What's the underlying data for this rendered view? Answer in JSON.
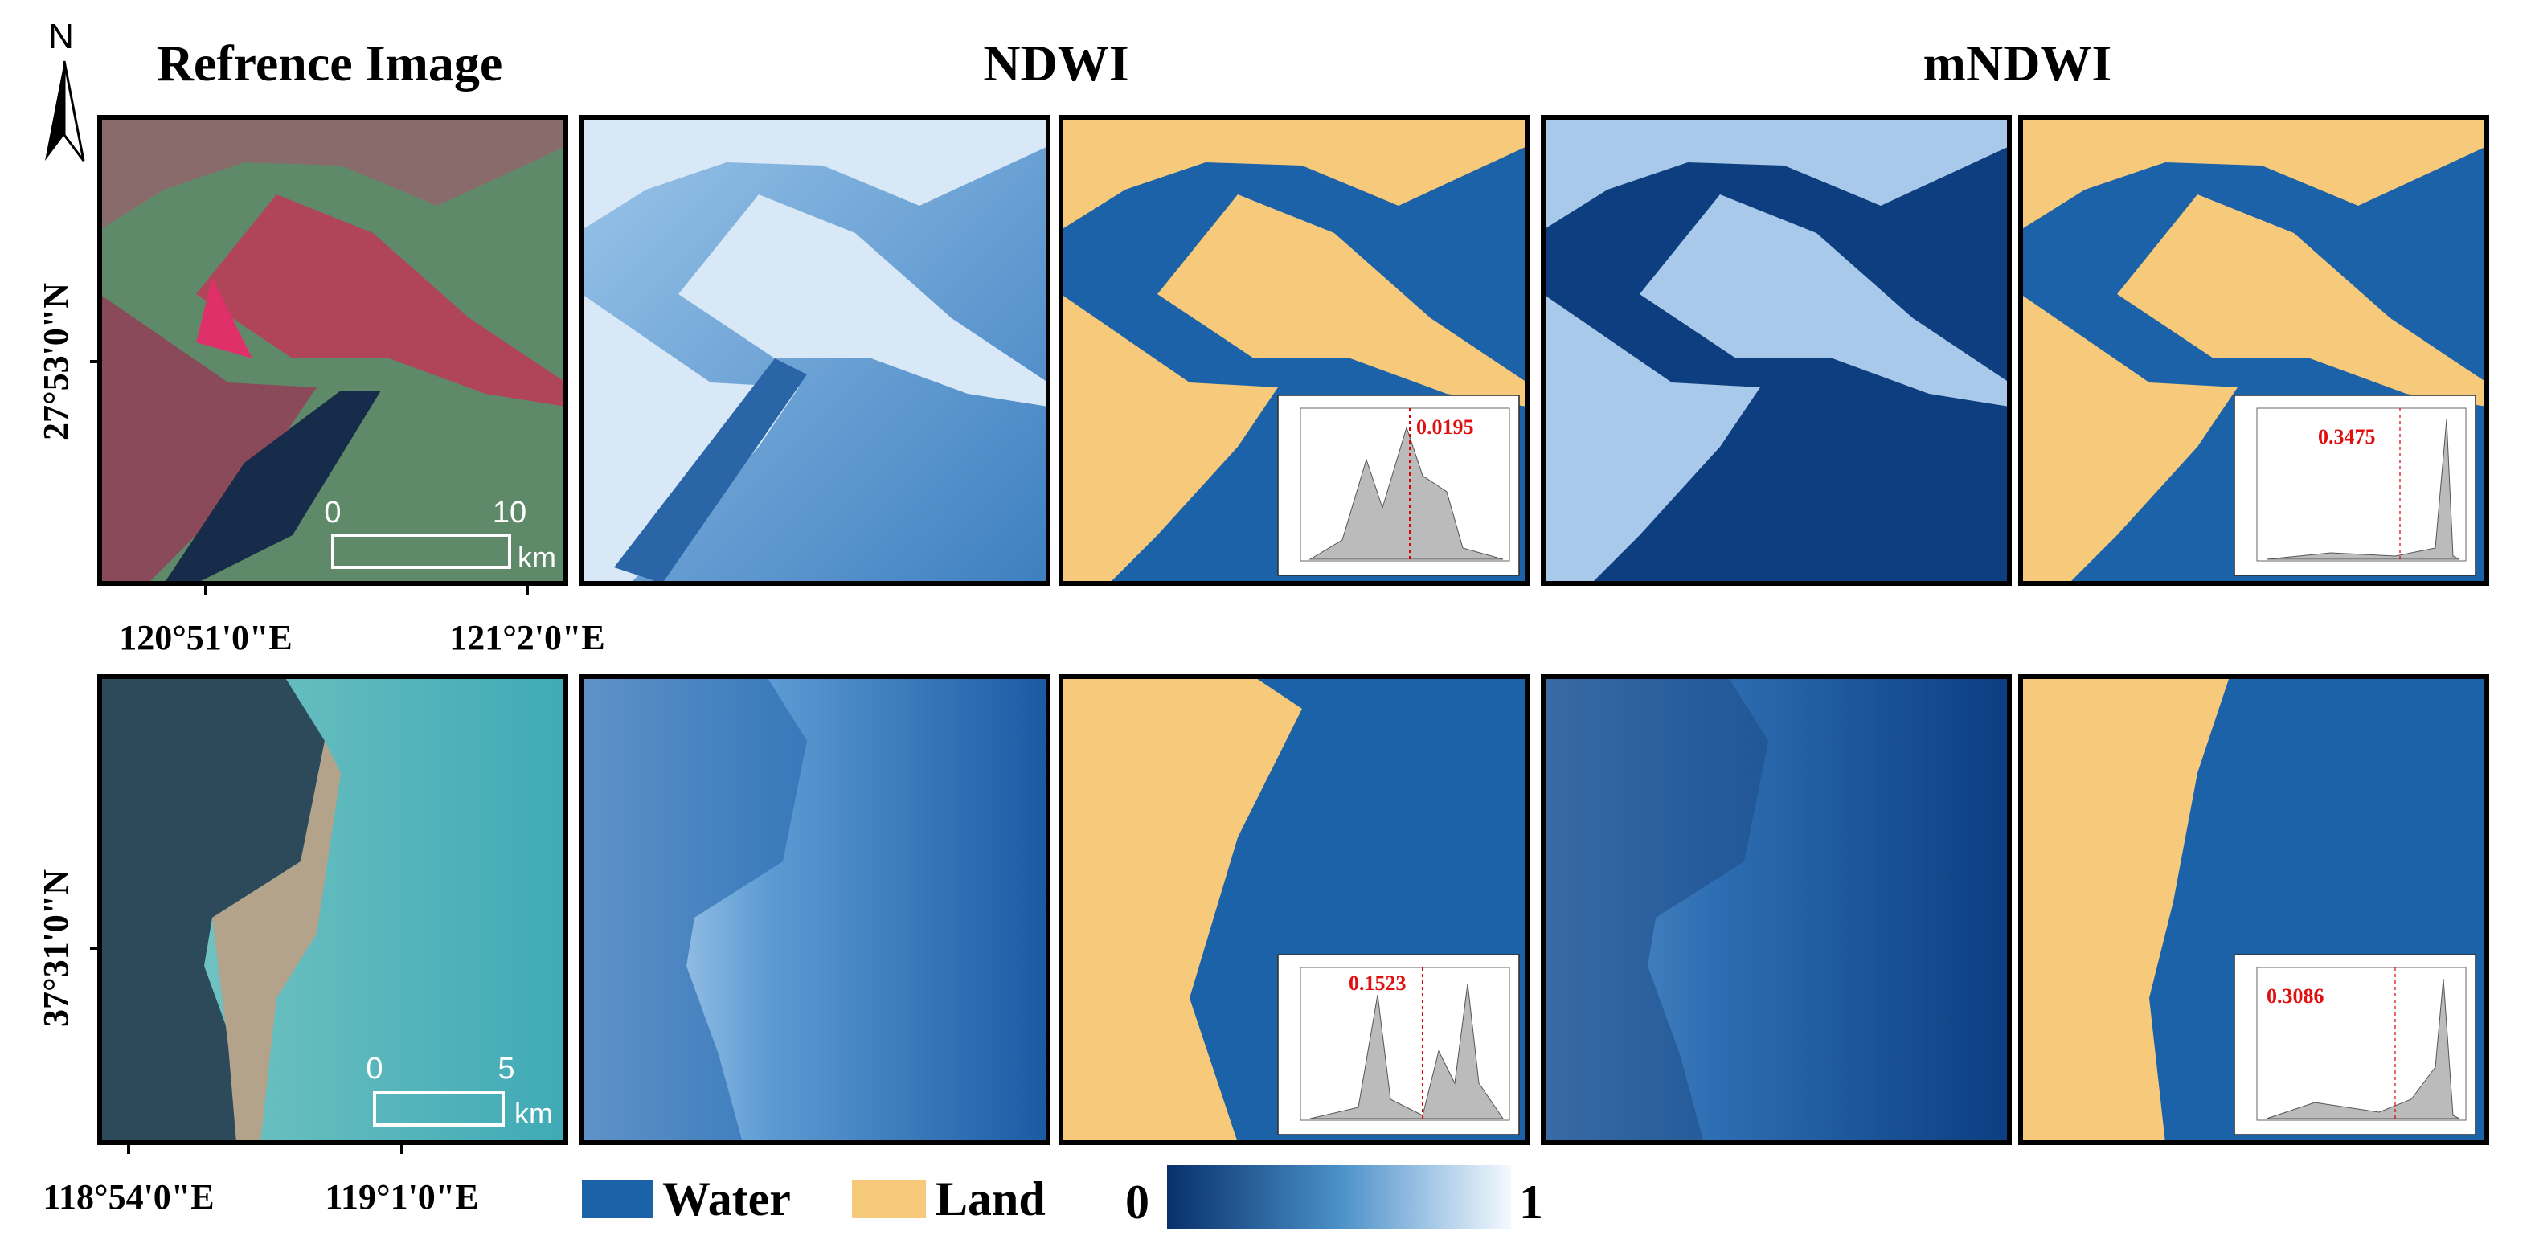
{
  "north": "N",
  "columns": [
    {
      "title": "Refrence Image"
    },
    {
      "title": "NDWI"
    },
    {
      "title": "mNDWI"
    }
  ],
  "rows": [
    {
      "latitude": "27°53'0\"N",
      "longitudes": [
        "120°51'0\"E",
        "121°2'0\"E"
      ],
      "scale": {
        "start": 0,
        "end": 10,
        "unit": "km"
      },
      "thresholds": {
        "ndwi": 0.0195,
        "mndwi": 0.3475
      }
    },
    {
      "latitude": "37°31'0\"N",
      "longitudes": [
        "118°54'0\"E",
        "119°1'0\"E"
      ],
      "scale": {
        "start": 0,
        "end": 5,
        "unit": "km"
      },
      "thresholds": {
        "ndwi": 0.1523,
        "mndwi": 0.3086
      }
    }
  ],
  "legend": {
    "water": "Water",
    "land": "Land",
    "colorbar": {
      "min": 0,
      "max": 1
    }
  }
}
